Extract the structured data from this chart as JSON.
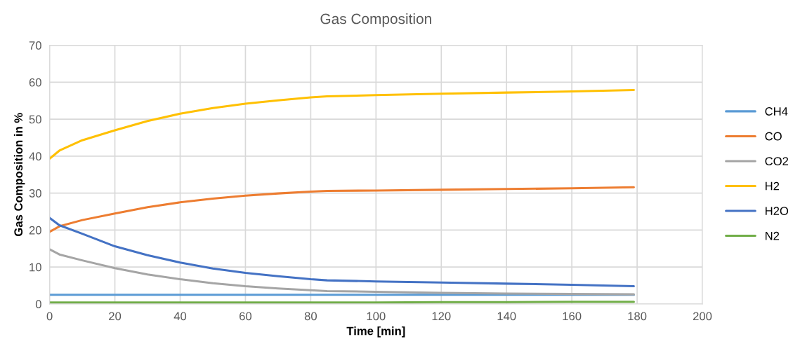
{
  "chart_data": {
    "type": "line",
    "title": "Gas Composition",
    "xlabel": "Time [min]",
    "ylabel": "Gas Composition in %",
    "x": [
      0,
      3,
      10,
      20,
      30,
      40,
      50,
      60,
      70,
      80,
      85,
      100,
      120,
      140,
      160,
      179
    ],
    "series": [
      {
        "name": "CH4",
        "color": "#5b9bd5",
        "values": [
          2.5,
          2.5,
          2.5,
          2.5,
          2.5,
          2.5,
          2.5,
          2.5,
          2.5,
          2.5,
          2.5,
          2.5,
          2.5,
          2.5,
          2.5,
          2.5
        ]
      },
      {
        "name": "CO",
        "color": "#ed7d31",
        "values": [
          19.5,
          21.0,
          22.7,
          24.5,
          26.2,
          27.5,
          28.5,
          29.3,
          29.9,
          30.4,
          30.6,
          30.7,
          30.9,
          31.1,
          31.3,
          31.6
        ]
      },
      {
        "name": "CO2",
        "color": "#a5a5a5",
        "values": [
          14.8,
          13.4,
          11.8,
          9.7,
          8.0,
          6.7,
          5.6,
          4.8,
          4.2,
          3.7,
          3.5,
          3.3,
          3.0,
          2.8,
          2.7,
          2.6
        ]
      },
      {
        "name": "H2",
        "color": "#ffc000",
        "values": [
          39.3,
          41.5,
          44.3,
          47.0,
          49.5,
          51.5,
          53.0,
          54.2,
          55.1,
          55.9,
          56.2,
          56.5,
          56.9,
          57.2,
          57.5,
          57.9
        ]
      },
      {
        "name": "H2O",
        "color": "#4472c4",
        "values": [
          23.3,
          21.3,
          19.0,
          15.6,
          13.2,
          11.2,
          9.6,
          8.4,
          7.5,
          6.7,
          6.4,
          6.1,
          5.8,
          5.5,
          5.2,
          4.8
        ]
      },
      {
        "name": "N2",
        "color": "#70ad47",
        "values": [
          0.4,
          0.4,
          0.4,
          0.4,
          0.4,
          0.4,
          0.4,
          0.4,
          0.4,
          0.4,
          0.4,
          0.4,
          0.5,
          0.5,
          0.6,
          0.6
        ]
      }
    ],
    "xlim": [
      0,
      200
    ],
    "xticks": [
      0,
      20,
      40,
      60,
      80,
      100,
      120,
      140,
      160,
      180,
      200
    ],
    "ylim": [
      0,
      70
    ],
    "yticks": [
      0,
      10,
      20,
      30,
      40,
      50,
      60,
      70
    ],
    "grid": true,
    "legend": "right",
    "marker": "none",
    "line_style": "solid"
  }
}
